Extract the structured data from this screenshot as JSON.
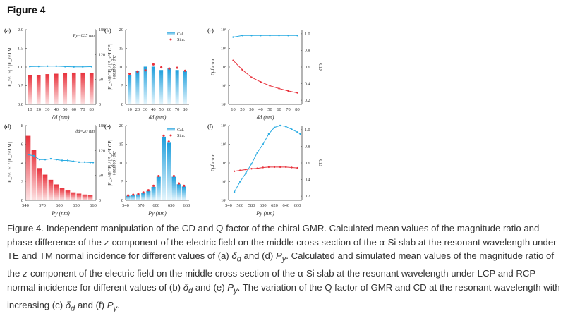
{
  "figure_title": "Figure 4",
  "caption": {
    "p1": "Figure 4. Independent manipulation of the CD and Q factor of the chiral GMR. Calculated mean values of the magnitude ratio and phase difference of the ",
    "z1": "z",
    "p2": "-component of the electric field on the middle cross section of the α-Si slab at the resonant wavelength under TE and TM normal incidence for different values of (a) ",
    "dd1": "δ",
    "dd1sub": "d",
    "p3": " and (d) ",
    "py1": "P",
    "py1sub": "y",
    "p4": ". Calculated and simulated mean values of the magnitude ratio of the ",
    "z2": "z",
    "p5": "-component of the electric field on the middle cross section of the α-Si slab at the resonant wavelength under LCP and RCP normal incidence for different values of (b) ",
    "dd2": "δ",
    "dd2sub": "d",
    "p6": " and (e) ",
    "py2": "P",
    "py2sub": "y",
    "p7": ". The variation of the Q factor of GMR and CD at the resonant wavelength with increasing (c) ",
    "dd3": "δ",
    "dd3sub": "d",
    "p8": " and (f) ",
    "py3": "P",
    "py3sub": "y",
    "p9": "."
  },
  "colors": {
    "red": "#e8323c",
    "blue": "#29abe2",
    "red_light": "#fde3e4",
    "blue_light": "#e6f6fd"
  },
  "chart_data": [
    {
      "id": "a",
      "label": "(a)",
      "type": "bar",
      "annotation": "Py=635 nm",
      "xlabel": "δd (nm)",
      "ylabel": "|E_z^TE| / |E_z^TM|",
      "y2label": "Δφ (degree)",
      "categories": [
        10,
        20,
        30,
        40,
        50,
        60,
        70,
        80
      ],
      "ylim": [
        0,
        2.0
      ],
      "yticks": [
        0.0,
        0.5,
        1.0,
        1.5,
        2.0
      ],
      "y2lim": [
        0,
        180
      ],
      "y2ticks": [
        0,
        60,
        120,
        180
      ],
      "series": [
        {
          "name": "magnitude ratio",
          "kind": "bar",
          "axis": "left",
          "color": "red",
          "values": [
            0.78,
            0.79,
            0.81,
            0.82,
            0.83,
            0.85,
            0.85,
            0.84
          ]
        },
        {
          "name": "phase difference",
          "kind": "line",
          "axis": "right",
          "color": "blue",
          "values": [
            91,
            91.5,
            92,
            92,
            91,
            90.5,
            90.5,
            91
          ]
        }
      ]
    },
    {
      "id": "b",
      "label": "(b)",
      "type": "bar",
      "xlabel": "δd (nm)",
      "ylabel": "|E_z^RCP| / |E_z^LCP|",
      "categories": [
        10,
        20,
        30,
        40,
        50,
        60,
        70,
        80
      ],
      "ylim": [
        0,
        20
      ],
      "yticks": [
        0,
        5,
        10,
        15,
        20
      ],
      "legend": [
        "Cal.",
        "Sim."
      ],
      "legend_position": "top-right",
      "series": [
        {
          "name": "Cal.",
          "kind": "bar",
          "color": "blue",
          "values": [
            7.9,
            8.9,
            10.1,
            10.1,
            9.2,
            9.6,
            9.2,
            9.0
          ]
        },
        {
          "name": "Sim.",
          "kind": "scatter",
          "color": "red",
          "values": [
            8.2,
            8.8,
            9.1,
            10.7,
            9.9,
            9.6,
            9.8,
            9.0
          ]
        }
      ]
    },
    {
      "id": "c",
      "label": "(c)",
      "type": "line",
      "xlabel": "δd (nm)",
      "ylabel": "Q-factor",
      "y2label": "CD",
      "x": [
        10,
        20,
        30,
        40,
        50,
        60,
        70,
        80
      ],
      "xticks": [
        10,
        20,
        30,
        40,
        50,
        60,
        70,
        80
      ],
      "ylim_log10": [
        2,
        6
      ],
      "yticks": [
        "10²",
        "10³",
        "10⁴",
        "10⁵",
        "10⁶"
      ],
      "y2lim": [
        0.15,
        1.05
      ],
      "y2ticks": [
        0.2,
        0.4,
        0.6,
        0.8,
        1.0
      ],
      "series": [
        {
          "name": "CD",
          "axis": "right",
          "color": "blue",
          "values": [
            0.96,
            0.98,
            0.98,
            0.98,
            0.98,
            0.98,
            0.98,
            0.98
          ]
        },
        {
          "name": "Q-factor",
          "axis": "left",
          "color": "red",
          "log10_values": [
            4.35,
            3.85,
            3.45,
            3.2,
            3.0,
            2.85,
            2.72,
            2.62
          ]
        }
      ]
    },
    {
      "id": "d",
      "label": "(d)",
      "type": "bar",
      "annotation": "δd=20 nm",
      "xlabel": "Py (nm)",
      "ylabel": "|E_z^TE| / |E_z^TM|",
      "y2label": "Δφ (degree)",
      "categories": [
        545,
        555,
        565,
        575,
        585,
        595,
        605,
        615,
        625,
        635,
        645,
        655,
        660
      ],
      "xlim": [
        540,
        665
      ],
      "xticks": [
        540,
        570,
        600,
        630,
        660
      ],
      "ylim": [
        0,
        8
      ],
      "yticks": [
        0,
        2,
        4,
        6,
        8
      ],
      "y2lim": [
        0,
        180
      ],
      "y2ticks": [
        0,
        60,
        120,
        180
      ],
      "series": [
        {
          "name": "magnitude ratio",
          "kind": "bar",
          "axis": "left",
          "color": "red",
          "x": [
            545,
            555,
            565,
            575,
            585,
            595,
            605,
            615,
            625,
            635,
            645,
            655
          ],
          "values": [
            6.9,
            5.4,
            3.45,
            2.75,
            2.2,
            1.7,
            1.3,
            1.05,
            0.85,
            0.72,
            0.62,
            0.55
          ]
        },
        {
          "name": "phase difference",
          "kind": "line",
          "axis": "right",
          "color": "blue",
          "x": [
            545,
            555,
            565,
            575,
            585,
            595,
            605,
            615,
            625,
            635,
            645,
            655,
            660
          ],
          "values": [
            110,
            107,
            98,
            98,
            100,
            98,
            96,
            96,
            94,
            92,
            92,
            91,
            91
          ]
        }
      ]
    },
    {
      "id": "e",
      "label": "(e)",
      "type": "bar",
      "xlabel": "Py (nm)",
      "ylabel": "|E_z^RCP| / |E_z^LCP|",
      "xlim": [
        540,
        665
      ],
      "xticks": [
        540,
        570,
        600,
        630,
        660
      ],
      "ylim": [
        0,
        20
      ],
      "yticks": [
        0,
        5,
        10,
        15,
        20
      ],
      "legend": [
        "Cal.",
        "Sim."
      ],
      "legend_position": "top-right",
      "x": [
        545,
        555,
        565,
        575,
        585,
        595,
        605,
        615,
        625,
        635,
        645,
        655
      ],
      "series": [
        {
          "name": "Cal.",
          "kind": "bar",
          "color": "blue",
          "values": [
            1.2,
            1.4,
            1.6,
            1.9,
            2.5,
            3.6,
            6.3,
            17.0,
            15.4,
            6.3,
            4.3,
            3.7
          ]
        },
        {
          "name": "Sim.",
          "kind": "scatter",
          "color": "red",
          "values": [
            1.3,
            1.5,
            1.7,
            2.1,
            2.7,
            3.9,
            6.5,
            17.3,
            15.7,
            6.5,
            4.5,
            3.9
          ]
        }
      ]
    },
    {
      "id": "f",
      "label": "(f)",
      "type": "line",
      "xlabel": "Py (nm)",
      "ylabel": "Q-factor",
      "y2label": "CD",
      "x": [
        550,
        560,
        570,
        580,
        590,
        600,
        610,
        620,
        630,
        640,
        650,
        660,
        665
      ],
      "xlim": [
        540,
        668
      ],
      "xticks": [
        540,
        560,
        580,
        600,
        620,
        640,
        660
      ],
      "ylim_log10": [
        2,
        6
      ],
      "yticks": [
        "10²",
        "10³",
        "10⁴",
        "10⁵",
        "10⁶"
      ],
      "y2lim": [
        0.15,
        1.05
      ],
      "y2ticks": [
        0.2,
        0.4,
        0.6,
        0.8,
        1.0
      ],
      "series": [
        {
          "name": "CD",
          "axis": "right",
          "color": "red",
          "values": [
            0.5,
            0.51,
            0.52,
            0.53,
            0.535,
            0.545,
            0.55,
            0.55,
            0.55,
            0.55,
            0.545,
            0.54,
            null
          ]
        },
        {
          "name": "Q-factor",
          "axis": "left",
          "color": "blue",
          "log10_values": [
            2.45,
            3.0,
            3.45,
            3.95,
            4.55,
            5.0,
            5.55,
            5.9,
            6.0,
            5.95,
            5.8,
            5.65,
            5.55
          ]
        }
      ]
    }
  ]
}
